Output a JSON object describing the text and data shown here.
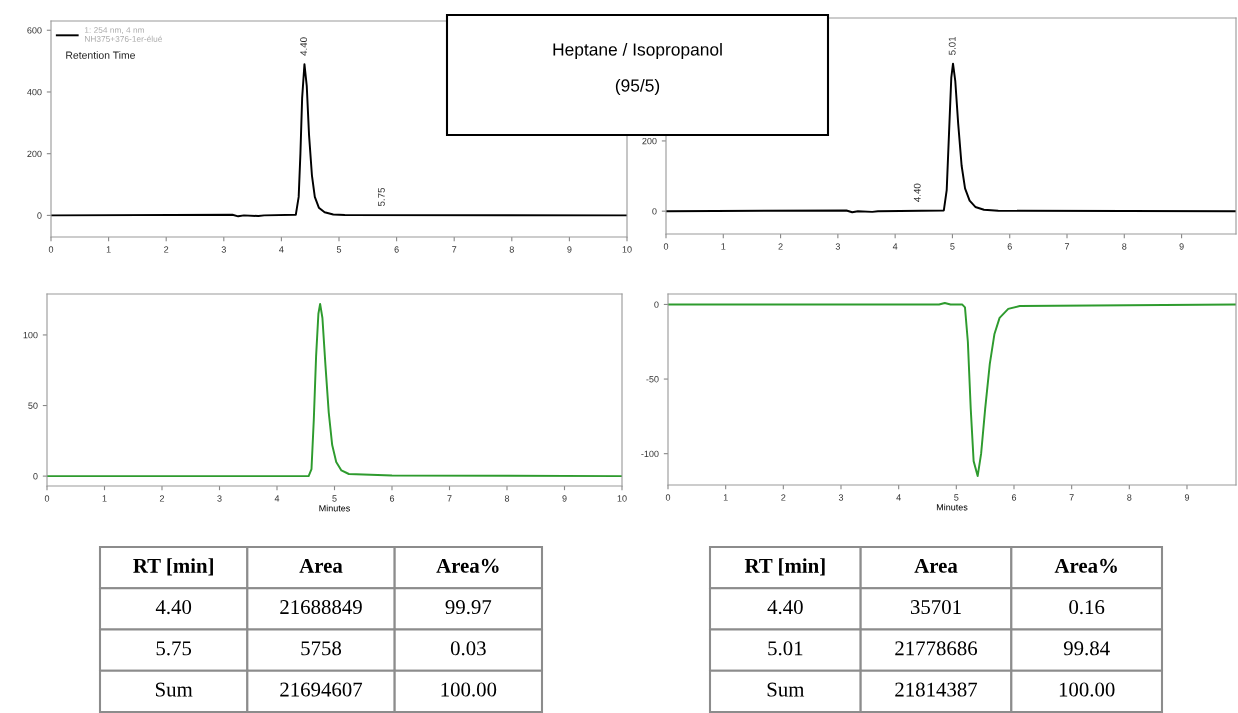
{
  "chart_data": [
    {
      "type": "line",
      "xlim": [
        0,
        10
      ],
      "ylim": [
        -70,
        630
      ],
      "xticks": [
        0,
        1,
        2,
        3,
        4,
        5,
        6,
        7,
        8,
        9,
        10
      ],
      "yticks": [
        0,
        200,
        400,
        600
      ],
      "legend": "top left",
      "annotations": [
        "Retention Time",
        {
          "text": "4.40",
          "x": 4.4,
          "y": 490
        },
        {
          "text": "5.75",
          "x": 5.75,
          "y": 2
        }
      ],
      "series": [
        {
          "name": "1: 254 nm, 4 nm\nNH375+376-1er-élué",
          "color": "#000000",
          "x": [
            0,
            3.15,
            3.25,
            3.35,
            3.6,
            3.7,
            4.25,
            4.3,
            4.33,
            4.36,
            4.4,
            4.44,
            4.48,
            4.53,
            4.58,
            4.65,
            4.75,
            4.9,
            5.1,
            10
          ],
          "values": [
            0,
            2,
            -3,
            0,
            -2,
            0,
            2,
            60,
            200,
            380,
            490,
            420,
            260,
            130,
            60,
            25,
            10,
            3,
            1,
            0
          ]
        }
      ]
    },
    {
      "type": "other",
      "annotations": [
        "Heptane / Isopropanol",
        "(95/5)"
      ]
    },
    {
      "type": "line",
      "xlim": [
        0,
        9.95
      ],
      "ylim": [
        -65,
        550
      ],
      "xticks": [
        0,
        1,
        2,
        3,
        4,
        5,
        6,
        7,
        8,
        9
      ],
      "yticks": [
        0,
        200
      ],
      "annotations": [
        {
          "text": "4.40",
          "x": 4.4,
          "y": 2
        },
        {
          "text": "5.01",
          "x": 5.01,
          "y": 420
        }
      ],
      "series": [
        {
          "color": "#000000",
          "x": [
            0,
            3.15,
            3.25,
            3.35,
            3.6,
            3.7,
            4.85,
            4.9,
            4.94,
            4.98,
            5.01,
            5.05,
            5.1,
            5.16,
            5.22,
            5.3,
            5.4,
            5.55,
            5.8,
            9.95
          ],
          "values": [
            0,
            2,
            -3,
            0,
            -2,
            0,
            2,
            60,
            220,
            380,
            420,
            370,
            250,
            130,
            65,
            30,
            12,
            4,
            1,
            0
          ]
        }
      ]
    },
    {
      "type": "line",
      "xlim": [
        0,
        10
      ],
      "ylim": [
        -7,
        129
      ],
      "xticks": [
        0,
        1,
        2,
        3,
        4,
        5,
        6,
        7,
        8,
        9,
        10
      ],
      "yticks": [
        0,
        50,
        100
      ],
      "xlabel": "Minutes",
      "series": [
        {
          "color": "#2e9b2e",
          "x": [
            0,
            4.55,
            4.6,
            4.64,
            4.68,
            4.72,
            4.75,
            4.79,
            4.84,
            4.9,
            4.96,
            5.03,
            5.12,
            5.25,
            6,
            10
          ],
          "values": [
            0,
            0,
            5,
            40,
            85,
            115,
            122,
            112,
            80,
            45,
            22,
            10,
            4,
            1.5,
            0.5,
            0
          ]
        }
      ]
    },
    {
      "type": "line",
      "xlim": [
        0,
        9.85
      ],
      "ylim": [
        -121,
        7
      ],
      "xticks": [
        0,
        1,
        2,
        3,
        4,
        5,
        6,
        7,
        8,
        9
      ],
      "yticks": [
        -100,
        -50,
        0
      ],
      "xlabel": "Minutes",
      "series": [
        {
          "color": "#2e9b2e",
          "x": [
            0,
            4.7,
            4.8,
            4.9,
            5.1,
            5.15,
            5.2,
            5.25,
            5.3,
            5.37,
            5.43,
            5.5,
            5.58,
            5.66,
            5.75,
            5.9,
            6.1,
            9.85
          ],
          "values": [
            0,
            0,
            1,
            0,
            0,
            -2,
            -25,
            -70,
            -105,
            -115,
            -100,
            -70,
            -40,
            -20,
            -9,
            -3,
            -1,
            0
          ]
        }
      ]
    },
    {
      "type": "other",
      "categories": [
        "RT [min]",
        "Area",
        "Area%"
      ],
      "cell_labels": [
        [
          "4.40",
          "21688849",
          "99.97"
        ],
        [
          "5.75",
          "5758",
          "0.03"
        ],
        [
          "Sum",
          "21694607",
          "100.00"
        ]
      ]
    },
    {
      "type": "other",
      "categories": [
        "RT [min]",
        "Area",
        "Area%"
      ],
      "cell_labels": [
        [
          "4.40",
          "35701",
          "0.16"
        ],
        [
          "5.01",
          "21778686",
          "99.84"
        ],
        [
          "Sum",
          "21814387",
          "100.00"
        ]
      ]
    }
  ]
}
